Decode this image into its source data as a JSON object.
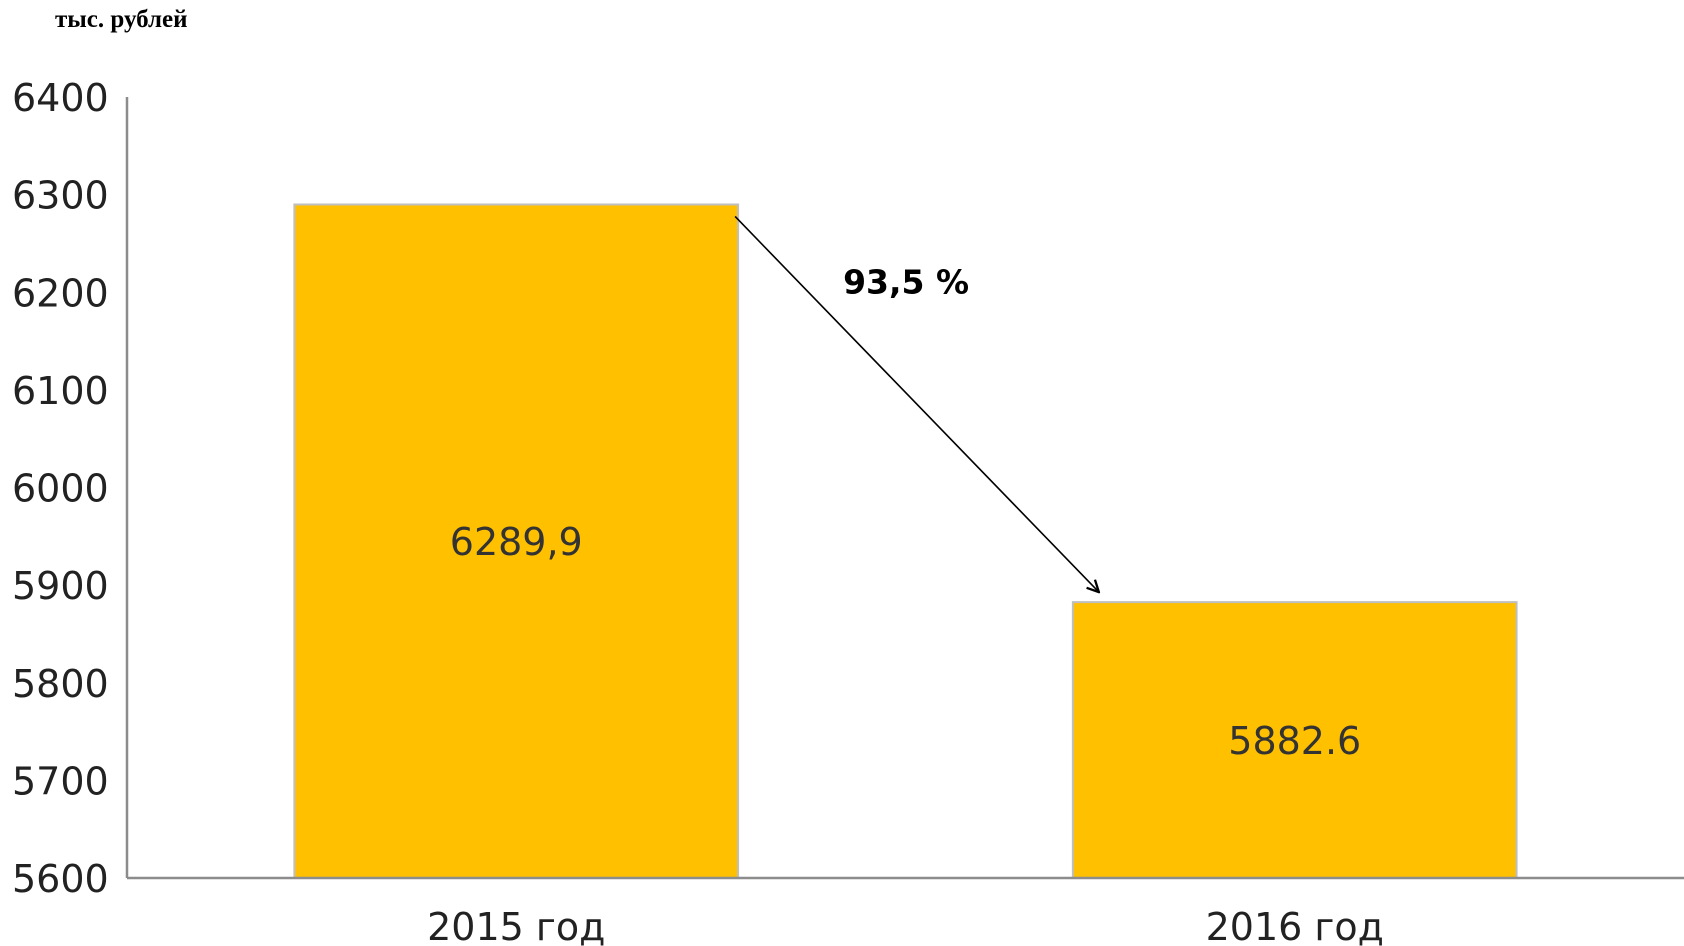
{
  "unit_label": "тыс. рублей",
  "chart_data": {
    "type": "bar",
    "categories": [
      "2015 год",
      "2016 год"
    ],
    "values": [
      6289.9,
      5882.6
    ],
    "data_labels": [
      "6289,9",
      "5882.6"
    ],
    "ylabel": "тыс. рублей",
    "ylim": [
      5600,
      6400
    ],
    "yticks": [
      "6400",
      "6300",
      "6200",
      "6100",
      "6000",
      "5900",
      "5800",
      "5700",
      "5600"
    ],
    "grid": false,
    "legend": "none",
    "bar_color": "#FFC000",
    "annotation": {
      "text": "93,5 %",
      "type": "arrow",
      "from_category": "2015 год",
      "to_category": "2016 год"
    }
  }
}
